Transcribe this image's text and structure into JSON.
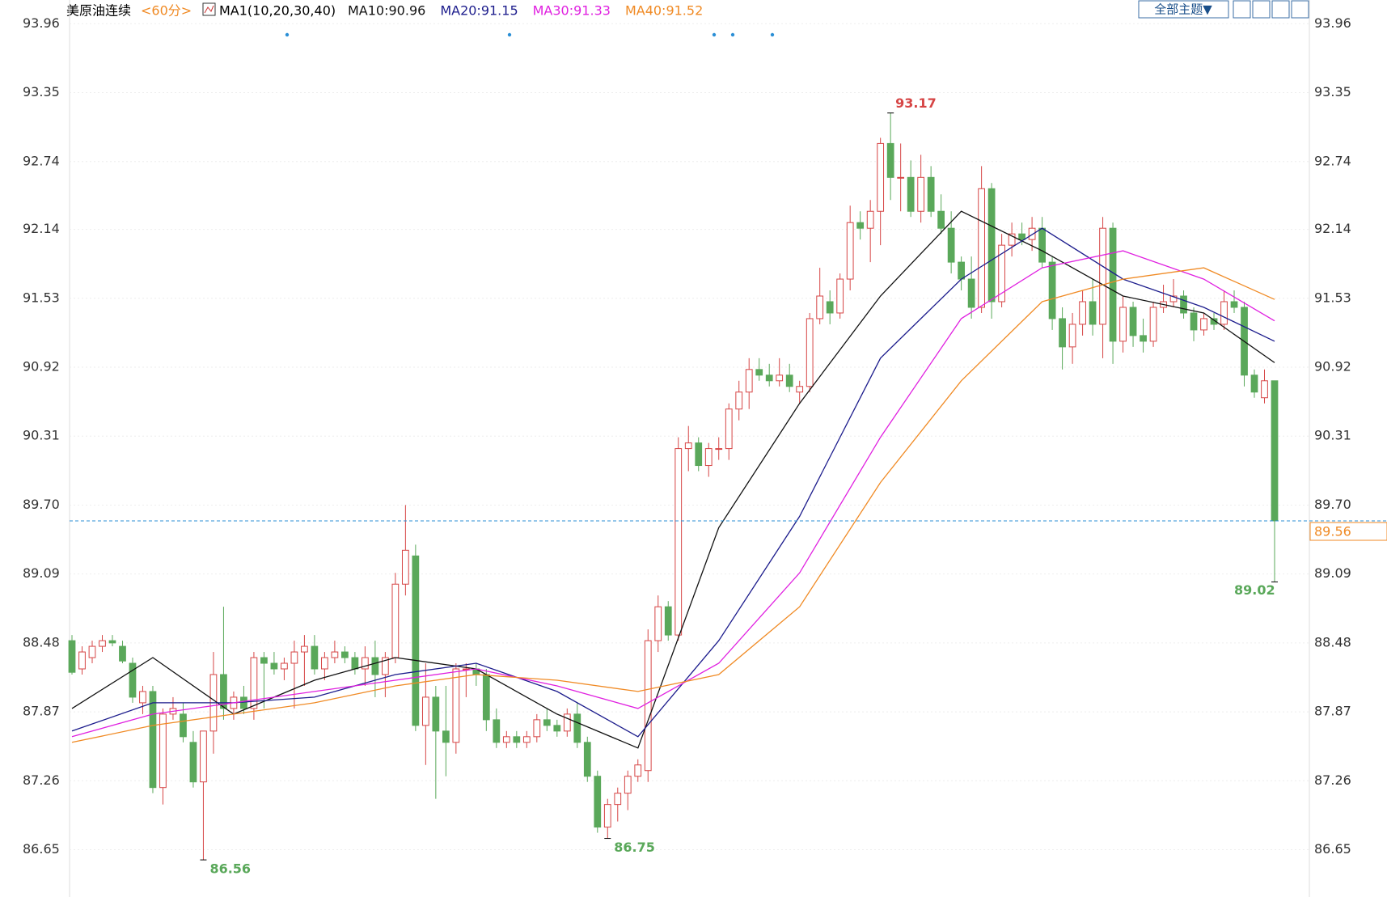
{
  "chart_data": {
    "type": "candlestick",
    "title": "美原油连续",
    "period": "<60分>",
    "indicator": "MA1(10,20,30,40)",
    "theme_button": "全部主题▼",
    "up_color": "#d64545",
    "down_color": "#5aa85a",
    "last_price_color": "#2b8fd6",
    "ylim": [
      86.26,
      94.17
    ],
    "yticks": [
      93.96,
      93.35,
      92.74,
      92.14,
      91.53,
      90.92,
      90.31,
      {
        "value": 89.7,
        "label": "89.70"
      },
      89.09,
      88.48,
      87.87,
      87.26,
      86.65
    ],
    "candles": [
      [
        88.5,
        88.55,
        88.2,
        88.22
      ],
      [
        88.25,
        88.45,
        88.2,
        88.4
      ],
      [
        88.35,
        88.5,
        88.3,
        88.45
      ],
      [
        88.45,
        88.55,
        88.4,
        88.5
      ],
      [
        88.5,
        88.55,
        88.45,
        88.48
      ],
      [
        88.45,
        88.5,
        88.3,
        88.32
      ],
      [
        88.3,
        88.35,
        87.95,
        88.0
      ],
      [
        87.95,
        88.1,
        87.85,
        88.05
      ],
      [
        88.05,
        88.1,
        87.15,
        87.2
      ],
      [
        87.2,
        87.9,
        87.05,
        87.85
      ],
      [
        87.85,
        88.0,
        87.8,
        87.9
      ],
      [
        87.85,
        87.95,
        87.6,
        87.65
      ],
      [
        87.6,
        87.7,
        87.2,
        87.25
      ],
      [
        87.25,
        87.7,
        86.56,
        87.7
      ],
      [
        87.7,
        88.4,
        87.5,
        88.2
      ],
      [
        88.2,
        88.8,
        87.8,
        87.9
      ],
      [
        87.9,
        88.05,
        87.8,
        88.0
      ],
      [
        88.0,
        88.1,
        87.85,
        87.9
      ],
      [
        87.9,
        88.4,
        87.8,
        88.35
      ],
      [
        88.35,
        88.4,
        87.9,
        88.3
      ],
      [
        88.3,
        88.4,
        88.2,
        88.25
      ],
      [
        88.25,
        88.35,
        88.15,
        88.3
      ],
      [
        88.3,
        88.5,
        87.9,
        88.4
      ],
      [
        88.4,
        88.55,
        88.1,
        88.45
      ],
      [
        88.45,
        88.55,
        88.2,
        88.25
      ],
      [
        88.25,
        88.4,
        88.15,
        88.35
      ],
      [
        88.35,
        88.5,
        88.3,
        88.4
      ],
      [
        88.4,
        88.45,
        88.3,
        88.35
      ],
      [
        88.35,
        88.4,
        88.2,
        88.25
      ],
      [
        88.25,
        88.45,
        88.1,
        88.35
      ],
      [
        88.35,
        88.5,
        88.0,
        88.2
      ],
      [
        88.2,
        88.4,
        88.0,
        88.35
      ],
      [
        88.35,
        89.1,
        88.3,
        89.0
      ],
      [
        89.0,
        89.7,
        88.9,
        89.3
      ],
      [
        89.25,
        89.35,
        87.7,
        87.75
      ],
      [
        87.75,
        88.3,
        87.4,
        88.0
      ],
      [
        88.0,
        88.1,
        87.1,
        87.7
      ],
      [
        87.7,
        88.1,
        87.3,
        87.6
      ],
      [
        87.6,
        88.3,
        87.5,
        88.25
      ],
      [
        88.25,
        88.3,
        88.0,
        88.25
      ],
      [
        88.25,
        88.3,
        88.1,
        88.2
      ],
      [
        88.2,
        88.25,
        87.7,
        87.8
      ],
      [
        87.8,
        87.9,
        87.55,
        87.6
      ],
      [
        87.6,
        87.7,
        87.55,
        87.65
      ],
      [
        87.65,
        87.7,
        87.55,
        87.6
      ],
      [
        87.6,
        87.7,
        87.55,
        87.65
      ],
      [
        87.65,
        87.85,
        87.6,
        87.8
      ],
      [
        87.8,
        87.9,
        87.7,
        87.75
      ],
      [
        87.75,
        87.8,
        87.65,
        87.7
      ],
      [
        87.7,
        87.9,
        87.65,
        87.85
      ],
      [
        87.85,
        87.95,
        87.55,
        87.6
      ],
      [
        87.6,
        87.65,
        87.25,
        87.3
      ],
      [
        87.3,
        87.35,
        86.8,
        86.85
      ],
      [
        86.85,
        87.1,
        86.75,
        87.05
      ],
      [
        87.05,
        87.2,
        86.9,
        87.15
      ],
      [
        87.15,
        87.35,
        87.0,
        87.3
      ],
      [
        87.3,
        87.45,
        87.25,
        87.4
      ],
      [
        87.35,
        88.6,
        87.25,
        88.5
      ],
      [
        88.5,
        88.9,
        88.4,
        88.8
      ],
      [
        88.8,
        88.85,
        88.5,
        88.55
      ],
      [
        88.55,
        90.3,
        88.5,
        90.2
      ],
      [
        90.2,
        90.4,
        90.0,
        90.25
      ],
      [
        90.25,
        90.3,
        90.0,
        90.05
      ],
      [
        90.05,
        90.25,
        89.95,
        90.2
      ],
      [
        90.2,
        90.3,
        90.1,
        90.2
      ],
      [
        90.2,
        90.6,
        90.1,
        90.55
      ],
      [
        90.55,
        90.8,
        90.45,
        90.7
      ],
      [
        90.7,
        91.0,
        90.55,
        90.9
      ],
      [
        90.9,
        91.0,
        90.8,
        90.85
      ],
      [
        90.85,
        90.95,
        90.75,
        90.8
      ],
      [
        90.8,
        91.0,
        90.75,
        90.85
      ],
      [
        90.85,
        90.95,
        90.7,
        90.75
      ],
      [
        90.7,
        90.8,
        90.6,
        90.75
      ],
      [
        90.75,
        91.4,
        90.7,
        91.35
      ],
      [
        91.35,
        91.8,
        91.3,
        91.55
      ],
      [
        91.5,
        91.6,
        91.3,
        91.4
      ],
      [
        91.4,
        91.75,
        91.35,
        91.7
      ],
      [
        91.7,
        92.35,
        91.6,
        92.2
      ],
      [
        92.2,
        92.3,
        92.05,
        92.15
      ],
      [
        92.15,
        92.4,
        91.85,
        92.3
      ],
      [
        92.3,
        92.95,
        92.0,
        92.9
      ],
      [
        92.9,
        93.17,
        92.4,
        92.6
      ],
      [
        92.6,
        92.9,
        92.3,
        92.6
      ],
      [
        92.6,
        92.75,
        92.25,
        92.3
      ],
      [
        92.3,
        92.8,
        92.2,
        92.6
      ],
      [
        92.6,
        92.7,
        92.25,
        92.3
      ],
      [
        92.3,
        92.45,
        92.1,
        92.15
      ],
      [
        92.15,
        92.3,
        91.75,
        91.85
      ],
      [
        91.85,
        91.9,
        91.6,
        91.7
      ],
      [
        91.7,
        91.9,
        91.35,
        91.45
      ],
      [
        91.45,
        92.7,
        91.4,
        92.5
      ],
      [
        92.5,
        92.55,
        91.35,
        91.5
      ],
      [
        91.5,
        92.1,
        91.45,
        92.0
      ],
      [
        92.0,
        92.2,
        91.9,
        92.1
      ],
      [
        92.1,
        92.2,
        92.0,
        92.05
      ],
      [
        92.05,
        92.25,
        91.95,
        92.15
      ],
      [
        92.15,
        92.25,
        91.8,
        91.85
      ],
      [
        91.85,
        91.9,
        91.25,
        91.35
      ],
      [
        91.35,
        91.45,
        90.9,
        91.1
      ],
      [
        91.1,
        91.4,
        90.95,
        91.3
      ],
      [
        91.3,
        91.6,
        91.2,
        91.5
      ],
      [
        91.5,
        91.7,
        91.2,
        91.3
      ],
      [
        91.3,
        92.25,
        91.0,
        92.15
      ],
      [
        92.15,
        92.2,
        90.95,
        91.15
      ],
      [
        91.15,
        91.55,
        91.05,
        91.45
      ],
      [
        91.45,
        91.5,
        91.1,
        91.2
      ],
      [
        91.2,
        91.35,
        91.05,
        91.15
      ],
      [
        91.15,
        91.5,
        91.1,
        91.45
      ],
      [
        91.45,
        91.65,
        91.4,
        91.5
      ],
      [
        91.5,
        91.7,
        91.45,
        91.55
      ],
      [
        91.55,
        91.6,
        91.35,
        91.4
      ],
      [
        91.4,
        91.45,
        91.15,
        91.25
      ],
      [
        91.25,
        91.4,
        91.2,
        91.35
      ],
      [
        91.35,
        91.4,
        91.25,
        91.3
      ],
      [
        91.3,
        91.6,
        91.25,
        91.5
      ],
      [
        91.5,
        91.6,
        91.4,
        91.45
      ],
      [
        91.45,
        91.5,
        90.75,
        90.85
      ],
      [
        90.85,
        90.9,
        90.65,
        90.7
      ],
      [
        90.65,
        90.9,
        90.6,
        90.8
      ],
      [
        90.8,
        90.8,
        89.02,
        89.56
      ]
    ],
    "ma_x": [
      0,
      8,
      16,
      24,
      32,
      40,
      48,
      56,
      64,
      72,
      80,
      88,
      96,
      104,
      112,
      119
    ],
    "series": [
      {
        "name": "MA10:90.96",
        "color": "#111111",
        "values": [
          87.9,
          88.35,
          87.85,
          88.15,
          88.35,
          88.25,
          87.85,
          87.55,
          89.5,
          90.6,
          91.55,
          92.3,
          91.95,
          91.55,
          91.4,
          90.96
        ]
      },
      {
        "name": "MA20:91.15",
        "color": "#1c1c8c",
        "values": [
          87.7,
          87.95,
          87.95,
          88.0,
          88.2,
          88.3,
          88.05,
          87.65,
          88.5,
          89.6,
          91.0,
          91.7,
          92.15,
          91.7,
          91.45,
          91.15
        ]
      },
      {
        "name": "MA30:91.33",
        "color": "#e020e0",
        "values": [
          87.65,
          87.85,
          87.95,
          88.05,
          88.15,
          88.25,
          88.1,
          87.9,
          88.3,
          89.1,
          90.3,
          91.35,
          91.8,
          91.95,
          91.7,
          91.33
        ]
      },
      {
        "name": "MA40:91.52",
        "color": "#f08a24",
        "values": [
          87.6,
          87.75,
          87.85,
          87.95,
          88.1,
          88.2,
          88.15,
          88.05,
          88.2,
          88.8,
          89.9,
          90.8,
          91.5,
          91.7,
          91.8,
          91.52
        ]
      }
    ]
  }
}
